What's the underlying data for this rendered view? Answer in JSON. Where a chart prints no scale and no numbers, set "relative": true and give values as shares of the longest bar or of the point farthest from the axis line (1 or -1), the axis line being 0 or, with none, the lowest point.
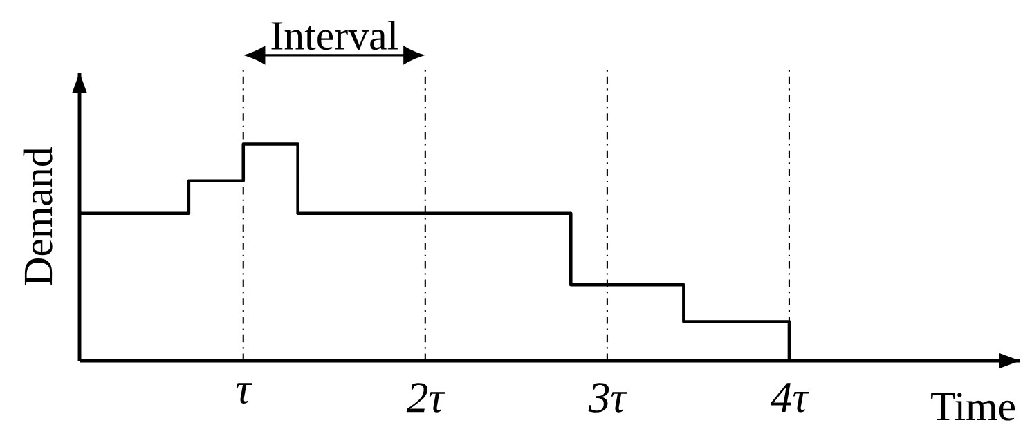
{
  "chart_data": {
    "type": "step",
    "xlabel": "Time",
    "ylabel": "Demand",
    "relative": true,
    "color": "#000000",
    "x": [
      0.1,
      0.7,
      1.0,
      1.3,
      2.8,
      3.42,
      4.0
    ],
    "values": [
      0.68,
      0.83,
      1.0,
      0.68,
      0.35,
      0.18,
      0
    ],
    "xlim": [
      0.1,
      5.27
    ],
    "xticks": [
      {
        "value": 1,
        "label": "τ"
      },
      {
        "value": 2,
        "label": "2τ"
      },
      {
        "value": 3,
        "label": "3τ"
      },
      {
        "value": 4,
        "label": "4τ"
      }
    ],
    "ref_lines": [
      {
        "axis": "x",
        "value": 1,
        "line_style": "dashdot"
      },
      {
        "axis": "x",
        "value": 2,
        "line_style": "dashdot"
      },
      {
        "axis": "x",
        "value": 3,
        "line_style": "dashdot"
      },
      {
        "axis": "x",
        "value": 4,
        "line_style": "dashdot"
      }
    ],
    "annotations": [
      "Interval"
    ]
  }
}
